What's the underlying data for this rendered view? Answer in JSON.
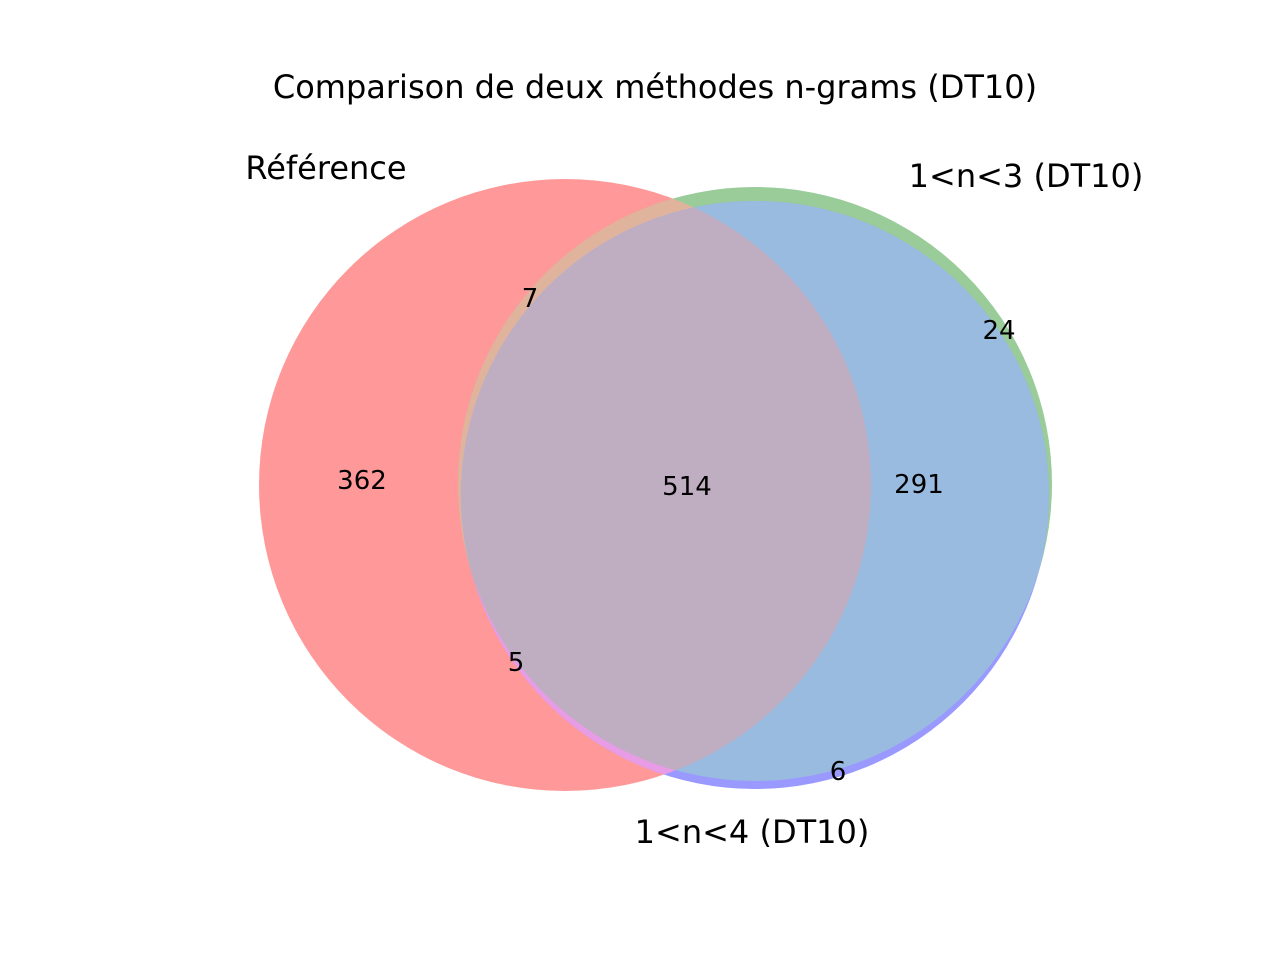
{
  "title": "Comparison de deux méthodes n-grams (DT10)",
  "sets": {
    "a": {
      "label": "Référence",
      "color": "#ff9999"
    },
    "b": {
      "label": "1<n<3 (DT10)",
      "color": "#99cc99"
    },
    "c": {
      "label": "1<n<4 (DT10)",
      "color": "#9999ff"
    }
  },
  "overlap_colors": {
    "a_b_c": "#bfadc1",
    "b_c": "#99bbe0",
    "a_b": "#e0b49c",
    "a_c": "#e99ce6"
  },
  "chart_data": {
    "type": "venn",
    "title": "Comparison de deux méthodes n-grams (DT10)",
    "sets": [
      "Référence",
      "1<n<3 (DT10)",
      "1<n<4 (DT10)"
    ],
    "regions": {
      "only_reference": 362,
      "only_1_3": 24,
      "only_1_4": 6,
      "reference_and_1_3_only": 7,
      "reference_and_1_4_only": 5,
      "1_3_and_1_4_only": 291,
      "all_three": 514
    }
  }
}
